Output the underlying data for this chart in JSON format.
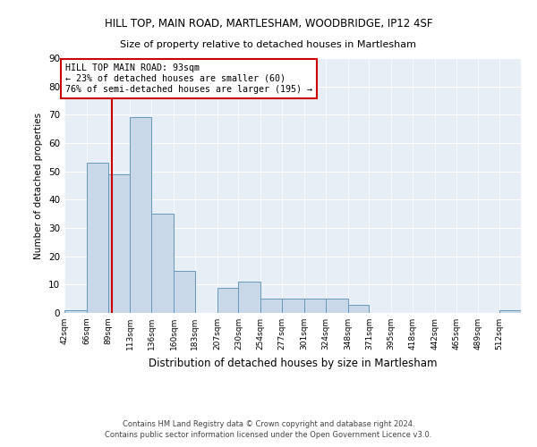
{
  "title_line1": "HILL TOP, MAIN ROAD, MARTLESHAM, WOODBRIDGE, IP12 4SF",
  "title_line2": "Size of property relative to detached houses in Martlesham",
  "xlabel": "Distribution of detached houses by size in Martlesham",
  "ylabel": "Number of detached properties",
  "bins": [
    42,
    66,
    89,
    113,
    136,
    160,
    183,
    207,
    230,
    254,
    277,
    301,
    324,
    348,
    371,
    395,
    418,
    442,
    465,
    489,
    512
  ],
  "counts": [
    1,
    53,
    49,
    69,
    35,
    15,
    0,
    9,
    11,
    5,
    5,
    5,
    5,
    3,
    0,
    0,
    0,
    0,
    0,
    0,
    1
  ],
  "bar_color": "#c8d8e8",
  "bar_edge_color": "#6699bb",
  "property_value": 93,
  "property_line_color": "#cc0000",
  "annotation_box_color": "#ffffff",
  "annotation_box_edge_color": "#cc0000",
  "annotation_text_line1": "HILL TOP MAIN ROAD: 93sqm",
  "annotation_text_line2": "← 23% of detached houses are smaller (60)",
  "annotation_text_line3": "76% of semi-detached houses are larger (195) →",
  "ylim": [
    0,
    90
  ],
  "yticks": [
    0,
    10,
    20,
    30,
    40,
    50,
    60,
    70,
    80,
    90
  ],
  "background_color": "#e8eef5",
  "footer_line1": "Contains HM Land Registry data © Crown copyright and database right 2024.",
  "footer_line2": "Contains public sector information licensed under the Open Government Licence v3.0."
}
